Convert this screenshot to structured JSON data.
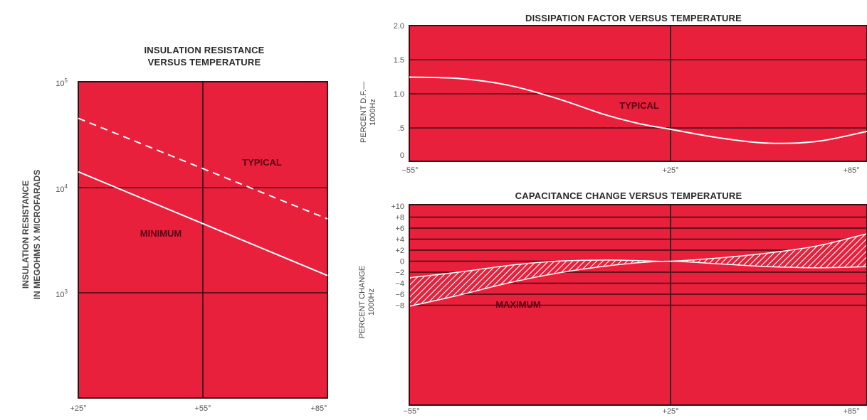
{
  "colors": {
    "panel": "#e8203c",
    "grid": "#3a0d12",
    "curve": "#ffffff",
    "annotation": "#5b0010",
    "text": "#2a2a2a"
  },
  "chart_data": [
    {
      "id": "insulation",
      "type": "line",
      "title": [
        "INSULATION RESISTANCE",
        "VERSUS TEMPERATURE"
      ],
      "ylabel": [
        "INSULATION RESISTANCE",
        "IN MEGOHMS X MICROFARADS"
      ],
      "xlabel": "",
      "x_ticks": [
        "+25°",
        "+55°",
        "+85°"
      ],
      "y_ticks": [
        {
          "base": "10",
          "exp": "5"
        },
        {
          "base": "10",
          "exp": "4"
        },
        {
          "base": "10",
          "exp": "3"
        }
      ],
      "xlim": [
        25,
        85
      ],
      "ylim_log10": [
        2,
        5
      ],
      "y_scale": "log",
      "grid": true,
      "series": [
        {
          "label": "TYPICAL",
          "style": "dashed",
          "x": [
            25,
            85
          ],
          "y": [
            45000,
            5000
          ]
        },
        {
          "label": "MINIMUM",
          "style": "solid",
          "x": [
            25,
            85
          ],
          "y": [
            14000,
            1450
          ]
        }
      ],
      "annotations": [
        "TYPICAL",
        "MINIMUM"
      ]
    },
    {
      "id": "dissipation",
      "type": "line",
      "title": "DISSIPATION FACTOR VERSUS TEMPERATURE",
      "ylabel": [
        "PERCENT D.F.—",
        "1000Hz"
      ],
      "xlabel": "",
      "x_ticks": [
        "−55°",
        "+25°",
        "+85°"
      ],
      "y_ticks": [
        "2.0",
        "1.5",
        "1.0",
        ".5",
        "0"
      ],
      "xlim": [
        -55,
        85
      ],
      "ylim": [
        0,
        2.0
      ],
      "grid": true,
      "series": [
        {
          "label": "TYPICAL",
          "style": "solid",
          "x": [
            -55,
            -40,
            -25,
            -10,
            5,
            15,
            25,
            40,
            55,
            70,
            85
          ],
          "y": [
            1.22,
            1.2,
            1.1,
            0.9,
            0.65,
            0.52,
            0.43,
            0.3,
            0.22,
            0.25,
            0.4
          ]
        }
      ],
      "annotations": [
        "TYPICAL"
      ]
    },
    {
      "id": "capacitance",
      "type": "area",
      "title": "CAPACITANCE CHANGE VERSUS TEMPERATURE",
      "ylabel": [
        "PERCENT CHANGE",
        "1000Hz"
      ],
      "xlabel": "",
      "x_ticks": [
        "−55°",
        "+25°",
        "+85°"
      ],
      "y_ticks": [
        "+10",
        "+8",
        "+6",
        "+4",
        "+2",
        "0",
        "−2",
        "−4",
        "−6",
        "−8"
      ],
      "xlim": [
        -55,
        85
      ],
      "ylim": [
        -9,
        10
      ],
      "grid": true,
      "band": {
        "label": "MAXIMUM",
        "x": [
          -55,
          -40,
          -25,
          -10,
          5,
          15,
          25,
          40,
          55,
          70,
          85
        ],
        "upper": [
          -3,
          -2,
          -0.8,
          0,
          0.2,
          0.1,
          0,
          0.6,
          1.5,
          2.8,
          5
        ],
        "lower": [
          -8.2,
          -6.2,
          -4,
          -2.2,
          -0.9,
          -0.3,
          0,
          -0.5,
          -1,
          -1.2,
          -1
        ]
      },
      "annotations": [
        "MAXIMUM"
      ]
    }
  ]
}
